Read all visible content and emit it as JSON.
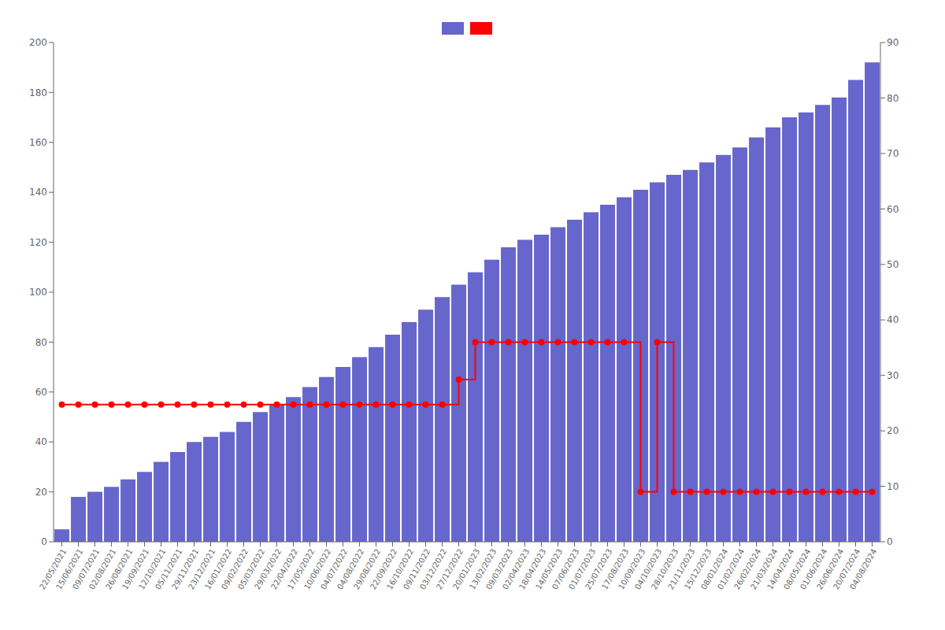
{
  "chart_data": {
    "type": "bar",
    "categories": [
      "22/05/2021",
      "15/06/2021",
      "09/07/2021",
      "02/08/2021",
      "26/08/2021",
      "19/09/2021",
      "12/10/2021",
      "05/11/2021",
      "29/11/2021",
      "23/12/2021",
      "16/01/2022",
      "09/02/2022",
      "05/03/2022",
      "29/03/2022",
      "22/04/2022",
      "17/05/2022",
      "10/06/2022",
      "04/07/2022",
      "04/08/2022",
      "29/08/2022",
      "22/09/2022",
      "16/10/2022",
      "09/11/2022",
      "03/12/2022",
      "27/12/2022",
      "20/01/2023",
      "13/02/2023",
      "09/03/2023",
      "02/04/2023",
      "18/04/2023",
      "14/05/2023",
      "07/06/2023",
      "01/07/2023",
      "25/07/2023",
      "17/08/2023",
      "10/09/2023",
      "04/10/2023",
      "28/10/2023",
      "21/11/2023",
      "15/12/2023",
      "08/01/2024",
      "01/02/2024",
      "26/02/2024",
      "21/03/2024",
      "14/04/2024",
      "08/05/2024",
      "01/06/2024",
      "26/06/2024",
      "20/07/2024",
      "04/08/2024"
    ],
    "series": [
      {
        "type": "bar",
        "color": "#6666cc",
        "values": [
          5,
          18,
          20,
          22,
          25,
          28,
          32,
          36,
          40,
          42,
          44,
          48,
          52,
          55,
          58,
          62,
          66,
          70,
          74,
          78,
          83,
          88,
          93,
          98,
          103,
          108,
          113,
          118,
          121,
          123,
          126,
          129,
          132,
          135,
          138,
          141,
          144,
          147,
          149,
          152,
          155,
          158,
          162,
          166,
          170,
          172,
          175,
          178,
          185,
          192
        ]
      },
      {
        "type": "line",
        "color": "#ff0000",
        "marker": "circle",
        "line_style": "step",
        "values": [
          55,
          55,
          55,
          55,
          55,
          55,
          55,
          55,
          55,
          55,
          55,
          55,
          55,
          55,
          55,
          55,
          55,
          55,
          55,
          55,
          55,
          55,
          55,
          55,
          65,
          80,
          80,
          80,
          80,
          80,
          80,
          80,
          80,
          80,
          80,
          20,
          80,
          20,
          20,
          20,
          20,
          20,
          20,
          20,
          20,
          20,
          20,
          20,
          20,
          20
        ]
      }
    ],
    "ylim": [
      0,
      200
    ],
    "yticks": [
      0,
      20,
      40,
      60,
      80,
      100,
      120,
      140,
      160,
      180,
      200
    ],
    "y2lim": [
      0,
      90
    ],
    "y2ticks": [
      0,
      10,
      20,
      30,
      40,
      50,
      60,
      70,
      80,
      90
    ],
    "grid": false,
    "legend": "top"
  }
}
